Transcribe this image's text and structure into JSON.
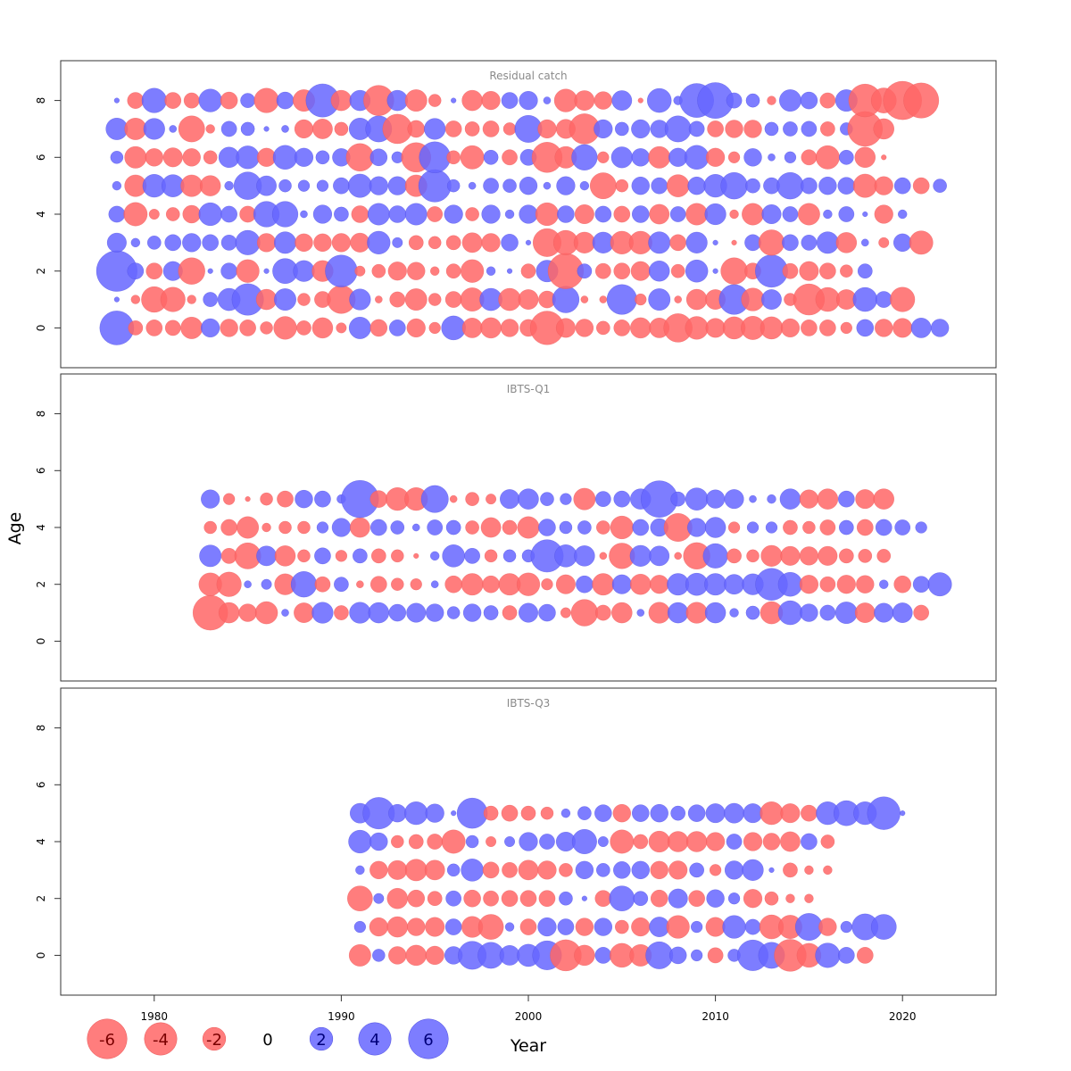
{
  "chart_data": {
    "type": "scatter",
    "subtype": "bubble",
    "xlabel": "Year",
    "ylabel": "Age",
    "xlim": [
      1975,
      2025
    ],
    "ylim": [
      -1.4,
      9.4
    ],
    "x_ticks": [
      1980,
      1990,
      2000,
      2010,
      2020
    ],
    "y_ticks": [
      0,
      2,
      4,
      6,
      8
    ],
    "colors": {
      "positive": "#6666ff",
      "negative": "#ff6666"
    },
    "legend": {
      "values": [
        -6,
        -4,
        -2,
        0,
        2,
        4,
        6
      ],
      "labels": [
        "-6",
        "-4",
        "-2",
        "0",
        "2",
        "4",
        "6"
      ]
    },
    "panels": [
      {
        "title": "Residual catch",
        "start_year": 1978,
        "ages": [
          0,
          1,
          2,
          3,
          4,
          5,
          6,
          7,
          8
        ],
        "residuals": {
          "0": [
            4.4,
            -0.8,
            -1.0,
            -0.9,
            -1.8,
            1.3,
            -1.2,
            -1.0,
            -0.6,
            -2.0,
            -0.8,
            -1.6,
            -0.4,
            1.8,
            -1.1,
            1.0,
            -1.3,
            -0.5,
            2.2,
            -1.5,
            -1.6,
            -1.2,
            -1.1,
            -4.3,
            -1.4,
            -1.2,
            -0.7,
            -1.0,
            -1.6,
            -1.5,
            -3.1,
            -2.0,
            -1.4,
            -1.9,
            -2.1,
            -1.9,
            -1.3,
            -1.0,
            -1.0,
            -0.5,
            1.1,
            -1.2,
            -1.4,
            1.5,
            1.2
          ],
          "1": [
            0.1,
            -0.3,
            -2.5,
            -2.3,
            -0.3,
            0.8,
            1.9,
            3.8,
            -1.6,
            1.8,
            -0.6,
            -1.0,
            -3.0,
            1.7,
            -0.2,
            -0.9,
            -1.8,
            -0.6,
            -1.0,
            -2.1,
            1.9,
            -1.9,
            -1.5,
            -1.1,
            2.7,
            -0.2,
            -0.2,
            3.4,
            -0.5,
            1.8,
            -0.2,
            -1.6,
            -1.5,
            3.4,
            -2.0,
            1.5,
            -0.6,
            -3.7,
            -2.2,
            -1.5,
            2.2,
            1.0,
            -2.3
          ],
          "2": [
            6.3,
            1.0,
            -1.0,
            1.4,
            -2.7,
            0.1,
            1.0,
            -2.0,
            0.1,
            2.4,
            1.7,
            -1.7,
            3.9,
            -0.4,
            -0.7,
            -1.3,
            -1.2,
            -0.3,
            -0.8,
            -2.0,
            0.3,
            0.1,
            -0.8,
            1.8,
            -4.8,
            0.8,
            -0.9,
            -1.0,
            -1.4,
            1.6,
            -0.7,
            1.9,
            0.1,
            -2.7,
            -1.0,
            4.0,
            -0.9,
            -1.4,
            -1.0,
            -0.6,
            0.8
          ],
          "3": [
            1.4,
            0.3,
            0.7,
            1.0,
            1.3,
            1.0,
            0.9,
            2.3,
            -1.3,
            1.8,
            -1.2,
            -1.2,
            -1.3,
            -1.4,
            2.0,
            0.4,
            -0.8,
            -0.6,
            -0.8,
            -1.5,
            -1.3,
            1.1,
            0.1,
            -3.0,
            -2.3,
            -1.7,
            1.7,
            -2.0,
            -2.0,
            1.8,
            -1.0,
            1.7,
            0.1,
            -0.1,
            1.0,
            -2.5,
            1.0,
            0.9,
            1.8,
            -1.6,
            0.2,
            -0.4,
            1.2,
            -2.1
          ],
          "4": [
            1.0,
            -2.1,
            -0.4,
            -0.7,
            -1.2,
            2.0,
            1.0,
            -1.0,
            2.5,
            2.5,
            0.2,
            1.3,
            0.8,
            -1.1,
            1.8,
            1.1,
            1.8,
            -0.9,
            1.3,
            -0.7,
            1.3,
            0.3,
            1.3,
            -2.0,
            1.1,
            -1.4,
            1.0,
            -1.0,
            1.1,
            -1.5,
            0.9,
            -1.8,
            1.7,
            -0.3,
            -1.8,
            1.4,
            0.9,
            -1.8,
            0.3,
            0.9,
            0.1,
            -1.3,
            0.3
          ],
          "5": [
            0.3,
            -1.8,
            2.0,
            1.9,
            -1.8,
            -1.6,
            0.3,
            2.9,
            1.5,
            0.6,
            0.5,
            0.5,
            1.0,
            2.1,
            1.3,
            1.3,
            -1.8,
            4.0,
            0.6,
            0.2,
            0.9,
            0.7,
            1.2,
            0.2,
            1.3,
            0.3,
            -2.6,
            -0.6,
            1.2,
            1.0,
            -1.9,
            1.2,
            2.0,
            2.7,
            0.8,
            1.0,
            2.7,
            1.0,
            1.2,
            1.1,
            -2.1,
            -1.3,
            1.0,
            -1.0,
            0.7
          ],
          "6": [
            0.6,
            -1.8,
            -1.2,
            -1.4,
            -1.2,
            -0.7,
            1.6,
            2.0,
            -1.3,
            2.2,
            1.3,
            0.7,
            1.2,
            -2.9,
            1.1,
            0.5,
            -3.3,
            3.7,
            -0.7,
            -2.1,
            0.8,
            -0.9,
            1.0,
            -3.5,
            -1.8,
            2.5,
            -0.5,
            1.7,
            1.2,
            -1.8,
            1.3,
            2.2,
            -1.3,
            -0.5,
            1.2,
            0.2,
            0.5,
            -0.9,
            -2.1,
            0.8,
            -1.6,
            -0.1
          ],
          "7": [
            1.8,
            -1.8,
            1.7,
            0.2,
            -2.6,
            -0.3,
            0.9,
            0.7,
            0.1,
            0.2,
            -1.3,
            -1.5,
            -0.7,
            1.8,
            2.6,
            -3.3,
            -1.1,
            1.7,
            -1.0,
            -0.8,
            -1.0,
            -0.6,
            2.8,
            -1.3,
            -1.4,
            -3.5,
            1.3,
            0.7,
            1.3,
            1.2,
            2.6,
            0.9,
            -1.0,
            -1.2,
            -1.2,
            0.7,
            0.8,
            0.9,
            -0.8,
            0.6,
            -4.6,
            -1.6
          ],
          "8": [
            0.1,
            -1.0,
            2.3,
            -1.0,
            -0.9,
            2.0,
            -1.1,
            0.8,
            -2.3,
            1.1,
            -1.8,
            4.2,
            -1.6,
            1.6,
            -3.5,
            1.6,
            -1.8,
            -0.6,
            0.1,
            -1.6,
            -1.3,
            1.0,
            1.3,
            0.2,
            -2.0,
            -1.5,
            -1.2,
            1.5,
            -0.1,
            2.2,
            0.3,
            4.4,
            4.9,
            0.9,
            0.7,
            -0.3,
            1.8,
            1.1,
            -0.9,
            1.8,
            -4.1,
            -2.4,
            -5.6,
            -4.7
          ]
        }
      },
      {
        "title": "IBTS-Q1",
        "start_year": 1983,
        "ages": [
          1,
          2,
          3,
          4,
          5
        ],
        "residuals": {
          "1": [
            -4.6,
            -1.6,
            -1.2,
            -1.9,
            0.2,
            -1.5,
            1.7,
            -0.8,
            1.7,
            1.6,
            1.1,
            1.4,
            1.2,
            0.6,
            1.2,
            0.8,
            -0.8,
            1.4,
            1.1,
            -0.4,
            -2.7,
            -0.9,
            -1.6,
            0.2,
            -1.7,
            1.6,
            -1.7,
            1.6,
            0.3,
            0.7,
            -1.9,
            2.2,
            1.2,
            0.9,
            1.8,
            -1.5,
            1.4,
            1.5,
            -0.9
          ],
          "2": [
            -2.0,
            -2.3,
            0.2,
            0.4,
            -1.7,
            2.5,
            -0.9,
            0.8,
            -0.2,
            -1.0,
            -0.6,
            -0.5,
            0.2,
            -1.1,
            -1.8,
            -1.1,
            -1.8,
            -2.0,
            -0.5,
            -1.4,
            1.1,
            -1.8,
            1.4,
            -1.6,
            -1.3,
            1.8,
            1.9,
            1.8,
            1.5,
            1.7,
            3.9,
            2.2,
            -1.3,
            -0.9,
            -1.3,
            -1.2,
            0.3,
            -1.1,
            1.0,
            2.1
          ],
          "3": [
            1.8,
            -0.9,
            -2.6,
            1.5,
            -1.6,
            -0.6,
            1.0,
            -0.5,
            0.8,
            -0.8,
            -0.6,
            -0.1,
            0.3,
            1.9,
            0.9,
            -0.6,
            0.6,
            0.6,
            4.0,
            1.9,
            1.6,
            -0.2,
            -2.5,
            1.7,
            1.5,
            -0.2,
            -2.7,
            2.3,
            -0.8,
            -0.6,
            -1.7,
            -1.4,
            -1.3,
            -1.4,
            -0.8,
            -0.7,
            -0.7
          ],
          "4": [
            -0.6,
            -1.0,
            -1.8,
            -0.3,
            -0.6,
            -0.6,
            0.5,
            1.3,
            -1.5,
            1.0,
            0.7,
            0.2,
            0.9,
            0.8,
            -0.7,
            -1.5,
            -0.8,
            -1.8,
            1.1,
            0.6,
            0.7,
            -0.7,
            -2.0,
            1.0,
            1.2,
            -3.0,
            1.3,
            1.6,
            -0.5,
            0.5,
            0.5,
            -0.8,
            -0.6,
            -0.9,
            0.8,
            -1.0,
            1.0,
            0.9,
            0.5
          ],
          "5": [
            1.3,
            -0.5,
            -0.1,
            -0.6,
            -1.0,
            1.2,
            1.0,
            0.3,
            5.3,
            -1.1,
            -2.0,
            -2.0,
            2.8,
            -0.2,
            -0.7,
            -0.4,
            1.4,
            1.6,
            0.7,
            0.5,
            -1.8,
            0.9,
            1.0,
            1.6,
            5.1,
            0.8,
            1.9,
            1.3,
            1.4,
            0.2,
            0.3,
            1.6,
            -1.3,
            -1.6,
            1.0,
            -1.4,
            -1.6
          ]
        }
      },
      {
        "title": "IBTS-Q3",
        "start_year": 1991,
        "ages": [
          0,
          1,
          2,
          3,
          4,
          5
        ],
        "residuals": {
          "0": [
            -1.8,
            0.6,
            -1.2,
            -1.6,
            -1.3,
            1.2,
            3.0,
            2.6,
            1.5,
            1.9,
            3.2,
            -3.7,
            -1.6,
            1.0,
            -2.2,
            -1.8,
            2.8,
            1.1,
            0.5,
            -0.9,
            0.6,
            3.6,
            2.6,
            -3.9,
            -2.2,
            2.3,
            1.0,
            -1.0
          ],
          "1": [
            0.5,
            -1.3,
            -1.6,
            -1.2,
            -1.4,
            1.0,
            -1.7,
            -2.4,
            0.3,
            -1.0,
            1.3,
            1.0,
            -1.2,
            1.2,
            -0.7,
            -1.3,
            1.5,
            -2.0,
            0.5,
            -1.4,
            2.0,
            0.9,
            -2.2,
            -2.1,
            2.8,
            -1.2,
            0.5,
            2.6,
            2.4
          ],
          "2": [
            -2.4,
            0.4,
            -1.6,
            -1.1,
            -0.8,
            0.9,
            -1.1,
            -0.9,
            -1.0,
            -1.0,
            -1.0,
            0.7,
            0.1,
            -1.0,
            2.4,
            0.8,
            -1.1,
            1.4,
            -1.0,
            1.2,
            0.5,
            -1.3,
            -0.7,
            -0.3,
            -0.3
          ],
          "3": [
            0.3,
            -1.2,
            -1.4,
            -1.8,
            -1.5,
            0.6,
            1.9,
            -1.0,
            -0.9,
            -1.5,
            -1.3,
            -0.7,
            1.2,
            0.7,
            1.1,
            1.2,
            -1.2,
            -1.3,
            0.8,
            -0.5,
            1.3,
            1.7,
            0.1,
            -0.8,
            -0.3,
            -0.3
          ],
          "4": [
            2.0,
            1.2,
            -0.6,
            -0.8,
            -0.9,
            -2.1,
            0.6,
            -0.4,
            0.4,
            1.3,
            0.9,
            1.4,
            2.3,
            0.4,
            -2.1,
            -0.8,
            -1.7,
            -1.6,
            -1.6,
            -1.3,
            0.9,
            -1.3,
            -1.1,
            -1.5,
            1.0,
            -0.7
          ],
          "5": [
            1.5,
            3.8,
            1.2,
            2.0,
            1.3,
            0.1,
            3.5,
            -0.8,
            -1.0,
            -0.8,
            -0.6,
            0.3,
            0.7,
            1.1,
            -1.2,
            1.1,
            1.2,
            0.8,
            1.1,
            1.4,
            1.5,
            1.4,
            -2.0,
            -1.4,
            -1.0,
            2.0,
            2.4,
            2.0,
            4.1,
            0.1
          ]
        }
      }
    ]
  }
}
